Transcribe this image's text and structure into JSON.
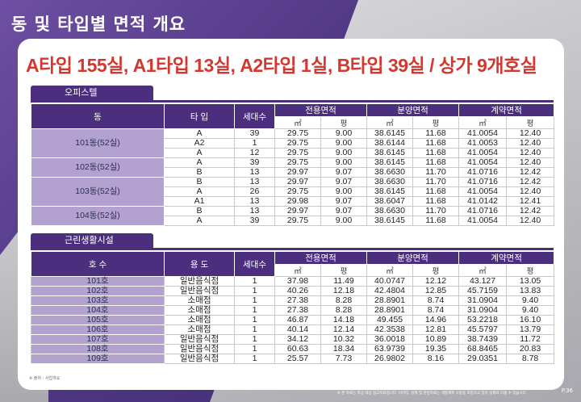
{
  "page_title": "동 및 타입별 면적 개요",
  "headline": "A타입 155실,  A1타입 13실, A2타입 1실, B타입 39실 / 상가 9개호실",
  "office": {
    "section_label": "오피스텔",
    "headers": {
      "dong": "동",
      "type": "타 입",
      "households": "세대수",
      "exclusive": "전용면적",
      "sale": "분양면적",
      "contract": "계약면적",
      "m2": "㎡",
      "pyeong": "평"
    },
    "groups": [
      {
        "label": "101동(52실)",
        "rows": [
          [
            "A",
            "39",
            "29.75",
            "9.00",
            "38.6145",
            "11.68",
            "41.0054",
            "12.40"
          ],
          [
            "A2",
            "1",
            "29.75",
            "9.00",
            "38.6144",
            "11.68",
            "41.0053",
            "12.40"
          ],
          [
            "A",
            "12",
            "29.75",
            "9.00",
            "38.6145",
            "11.68",
            "41.0054",
            "12.40"
          ]
        ]
      },
      {
        "label": "102동(52실)",
        "rows": [
          [
            "A",
            "39",
            "29.75",
            "9.00",
            "38.6145",
            "11.68",
            "41.0054",
            "12.40"
          ],
          [
            "B",
            "13",
            "29.97",
            "9.07",
            "38.6630",
            "11.70",
            "41.0716",
            "12.42"
          ]
        ]
      },
      {
        "label": "103동(52실)",
        "rows": [
          [
            "B",
            "13",
            "29.97",
            "9.07",
            "38.6630",
            "11.70",
            "41.0716",
            "12.42"
          ],
          [
            "A",
            "26",
            "29.75",
            "9.00",
            "38.6145",
            "11.68",
            "41.0054",
            "12.40"
          ],
          [
            "A1",
            "13",
            "29.98",
            "9.07",
            "38.6047",
            "11.68",
            "41.0142",
            "12.41"
          ]
        ]
      },
      {
        "label": "104동(52실)",
        "rows": [
          [
            "B",
            "13",
            "29.97",
            "9.07",
            "38.6630",
            "11.70",
            "41.0716",
            "12.42"
          ],
          [
            "A",
            "39",
            "29.75",
            "9.00",
            "38.6145",
            "11.68",
            "41.0054",
            "12.40"
          ]
        ]
      }
    ]
  },
  "retail": {
    "section_label": "근린생활시설",
    "headers": {
      "unit": "호 수",
      "use": "용 도",
      "households": "세대수",
      "exclusive": "전용면적",
      "sale": "분양면적",
      "contract": "계약면적",
      "m2": "㎡",
      "pyeong": "평"
    },
    "rows": [
      [
        "101호",
        "일반음식점",
        "1",
        "37.98",
        "11.49",
        "40.0747",
        "12.12",
        "43.127",
        "13.05"
      ],
      [
        "102호",
        "일반음식점",
        "1",
        "40.26",
        "12.18",
        "42.4804",
        "12.85",
        "45.7159",
        "13.83"
      ],
      [
        "103호",
        "소매점",
        "1",
        "27.38",
        "8.28",
        "28.8901",
        "8.74",
        "31.0904",
        "9.40"
      ],
      [
        "104호",
        "소매점",
        "1",
        "27.38",
        "8.28",
        "28.8901",
        "8.74",
        "31.0904",
        "9.40"
      ],
      [
        "105호",
        "소매점",
        "1",
        "46.87",
        "14.18",
        "49.455",
        "14.96",
        "53.2218",
        "16.10"
      ],
      [
        "106호",
        "소매점",
        "1",
        "40.14",
        "12.14",
        "42.3538",
        "12.81",
        "45.5797",
        "13.79"
      ],
      [
        "107호",
        "일반음식점",
        "1",
        "34.12",
        "10.32",
        "36.0018",
        "10.89",
        "38.7439",
        "11.72"
      ],
      [
        "108호",
        "일반음식점",
        "1",
        "60.63",
        "18.34",
        "63.9739",
        "19.35",
        "68.8465",
        "20.83"
      ],
      [
        "109호",
        "일반음식점",
        "1",
        "25.57",
        "7.73",
        "26.9802",
        "8.16",
        "29.0351",
        "8.78"
      ]
    ]
  },
  "footnote_left": "※ 출처 : 사업개요",
  "footnote_right": "※ 본 자료는 착공 대상 참고자료입니다. 이미지, 설계 및 관련자료는 개발계획 사항을 포함하고 있어 실제와 다를 수 있습니다.",
  "page_number": "P.36"
}
